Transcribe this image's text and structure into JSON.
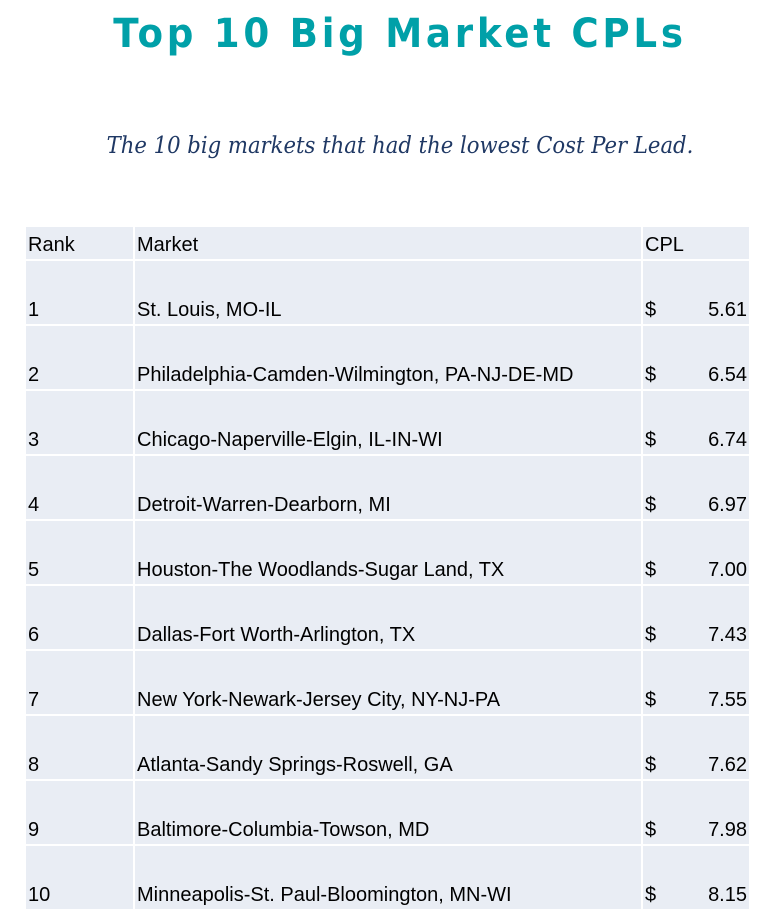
{
  "title": "Top 10 Big Market CPLs",
  "subtitle": "The 10 big markets that had the lowest Cost Per Lead.",
  "table": {
    "headers": {
      "rank": "Rank",
      "market": "Market",
      "cpl": "CPL"
    },
    "currency_symbol": "$",
    "rows": [
      {
        "rank": "1",
        "market": "St. Louis, MO-IL",
        "currency": "$",
        "cpl": "5.61"
      },
      {
        "rank": "2",
        "market": "Philadelphia-Camden-Wilmington, PA-NJ-DE-MD",
        "currency": "$",
        "cpl": "6.54"
      },
      {
        "rank": "3",
        "market": "Chicago-Naperville-Elgin, IL-IN-WI",
        "currency": "$",
        "cpl": "6.74"
      },
      {
        "rank": "4",
        "market": "Detroit-Warren-Dearborn, MI",
        "currency": "$",
        "cpl": "6.97"
      },
      {
        "rank": "5",
        "market": "Houston-The Woodlands-Sugar Land, TX",
        "currency": "$",
        "cpl": "7.00"
      },
      {
        "rank": "6",
        "market": "Dallas-Fort Worth-Arlington, TX",
        "currency": "$",
        "cpl": "7.43"
      },
      {
        "rank": "7",
        "market": "New York-Newark-Jersey City, NY-NJ-PA",
        "currency": "$",
        "cpl": "7.55"
      },
      {
        "rank": "8",
        "market": "Atlanta-Sandy Springs-Roswell, GA",
        "currency": "$",
        "cpl": "7.62"
      },
      {
        "rank": "9",
        "market": "Baltimore-Columbia-Towson, MD",
        "currency": "$",
        "cpl": "7.98"
      },
      {
        "rank": "10",
        "market": "Minneapolis-St. Paul-Bloomington, MN-WI",
        "currency": "$",
        "cpl": "8.15"
      }
    ]
  },
  "colors": {
    "title": "#00a0a8",
    "subtitle": "#1f3864",
    "cell_bg": "#e9edf4"
  }
}
